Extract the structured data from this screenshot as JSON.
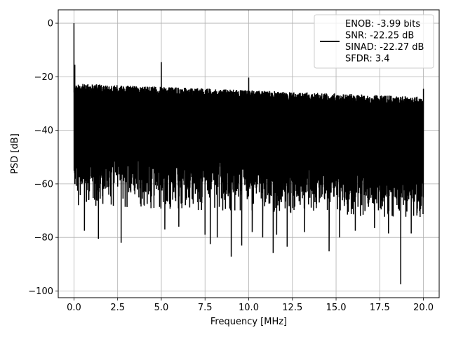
{
  "chart_data": {
    "type": "line",
    "xlabel": "Frequency [MHz]",
    "ylabel": "PSD [dB]",
    "xlim": [
      -0.9,
      20.9
    ],
    "ylim": [
      -102.5,
      5
    ],
    "x_ticks": [
      0.0,
      2.5,
      5.0,
      7.5,
      10.0,
      12.5,
      15.0,
      17.5,
      20.0
    ],
    "x_tick_labels": [
      "0.0",
      "2.5",
      "5.0",
      "7.5",
      "10.0",
      "12.5",
      "15.0",
      "17.5",
      "20.0"
    ],
    "y_ticks": [
      0,
      -20,
      -40,
      -60,
      -80,
      -100
    ],
    "y_tick_labels": [
      "0",
      "−20",
      "−40",
      "−60",
      "−80",
      "−100"
    ],
    "grid": true,
    "legend_position": "top-right",
    "series": [
      {
        "name": "ENOB: -3.99 bits\nSNR: -22.25 dB\nSINAD: -22.27 dB\nSFDR: 3.4",
        "color": "#000000",
        "noise_band": {
          "x_start": 0.0,
          "x_end": 20.0,
          "upper_start": -22.5,
          "upper_end": -27.5,
          "lower_start": -62,
          "lower_end": -67,
          "spike_floor": -70
        },
        "peaks": [
          {
            "x": 0.0,
            "y": 0.0
          },
          {
            "x": 0.05,
            "y": -15.5
          },
          {
            "x": 5.0,
            "y": -14.5
          },
          {
            "x": 10.0,
            "y": -20.3
          },
          {
            "x": 20.0,
            "y": -24.5
          }
        ],
        "dips": [
          {
            "x": 0.6,
            "y": -77.5
          },
          {
            "x": 1.4,
            "y": -80.5
          },
          {
            "x": 2.7,
            "y": -82.0
          },
          {
            "x": 5.2,
            "y": -77.0
          },
          {
            "x": 6.0,
            "y": -76.0
          },
          {
            "x": 7.5,
            "y": -79.0
          },
          {
            "x": 7.8,
            "y": -82.5
          },
          {
            "x": 8.2,
            "y": -80.0
          },
          {
            "x": 9.0,
            "y": -87.2
          },
          {
            "x": 9.6,
            "y": -83.0
          },
          {
            "x": 10.2,
            "y": -78.0
          },
          {
            "x": 10.8,
            "y": -80.0
          },
          {
            "x": 11.4,
            "y": -85.8
          },
          {
            "x": 11.6,
            "y": -79.0
          },
          {
            "x": 12.2,
            "y": -83.5
          },
          {
            "x": 13.2,
            "y": -78.0
          },
          {
            "x": 14.6,
            "y": -85.2
          },
          {
            "x": 15.2,
            "y": -80.0
          },
          {
            "x": 16.1,
            "y": -77.5
          },
          {
            "x": 17.2,
            "y": -76.5
          },
          {
            "x": 18.0,
            "y": -78.5
          },
          {
            "x": 18.7,
            "y": -97.5
          },
          {
            "x": 19.3,
            "y": -78.5
          }
        ]
      }
    ]
  }
}
